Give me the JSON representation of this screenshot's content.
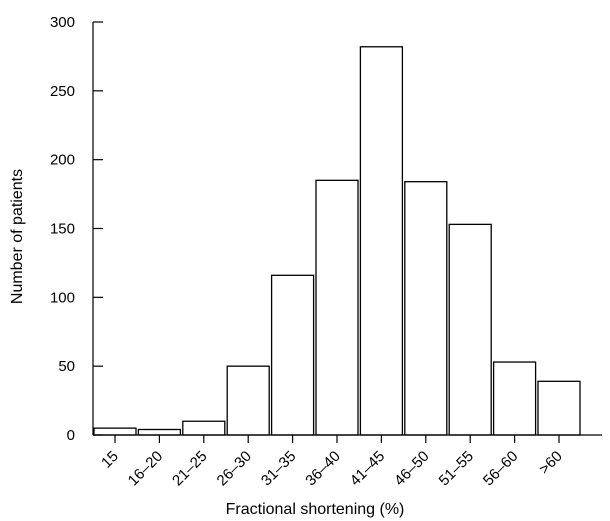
{
  "chart_data": {
    "type": "bar",
    "categories": [
      "15",
      "16–20",
      "21–25",
      "26–30",
      "31–35",
      "36–40",
      "41–45",
      "46–50",
      "51–55",
      "56–60",
      ">60"
    ],
    "values": [
      5,
      4,
      10,
      50,
      116,
      185,
      282,
      184,
      153,
      53,
      39
    ],
    "xlabel": "Fractional shortening (%)",
    "ylabel": "Number of patients",
    "ylim": [
      0,
      300
    ],
    "yticks": [
      0,
      50,
      100,
      150,
      200,
      250,
      300
    ],
    "grid": false,
    "legend": "none",
    "colors": {
      "bar_fill": "#ffffff",
      "bar_stroke": "#000000"
    }
  }
}
